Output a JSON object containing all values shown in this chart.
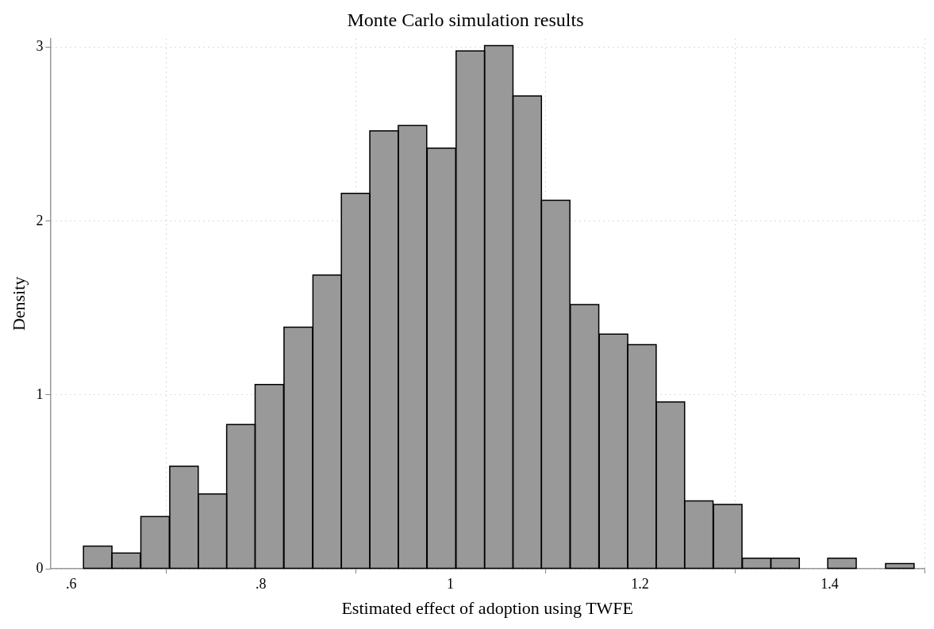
{
  "chart_data": {
    "type": "histogram",
    "title": "Monte Carlo simulation results",
    "xlabel": "Estimated effect of adoption using TWFE",
    "ylabel": "Density",
    "bins": [
      0.613,
      0.643,
      0.673,
      0.704,
      0.734,
      0.764,
      0.794,
      0.824,
      0.855,
      0.885,
      0.915,
      0.945,
      0.975,
      1.006,
      1.036,
      1.066,
      1.096,
      1.126,
      1.157,
      1.187,
      1.217,
      1.247,
      1.277,
      1.308,
      1.338,
      1.368,
      1.398,
      1.428,
      1.459,
      1.489
    ],
    "values": [
      0.13,
      0.09,
      0.3,
      0.59,
      0.43,
      0.83,
      1.06,
      1.39,
      1.69,
      2.16,
      2.52,
      2.55,
      2.42,
      2.98,
      3.01,
      2.72,
      2.12,
      1.52,
      1.35,
      1.29,
      0.96,
      0.39,
      0.37,
      0.06,
      0.06,
      0,
      0.06,
      0,
      0.03
    ],
    "color": "#999999",
    "xlim": [
      0.578,
      1.5
    ],
    "xticks": [
      {
        "value": 0.6,
        "label": ".6"
      },
      {
        "value": 0.8,
        "label": ".8"
      },
      1,
      1.2,
      1.4
    ],
    "ylim": [
      0,
      3.05
    ],
    "yticks": [
      0,
      1,
      2,
      3
    ],
    "grid": true
  }
}
